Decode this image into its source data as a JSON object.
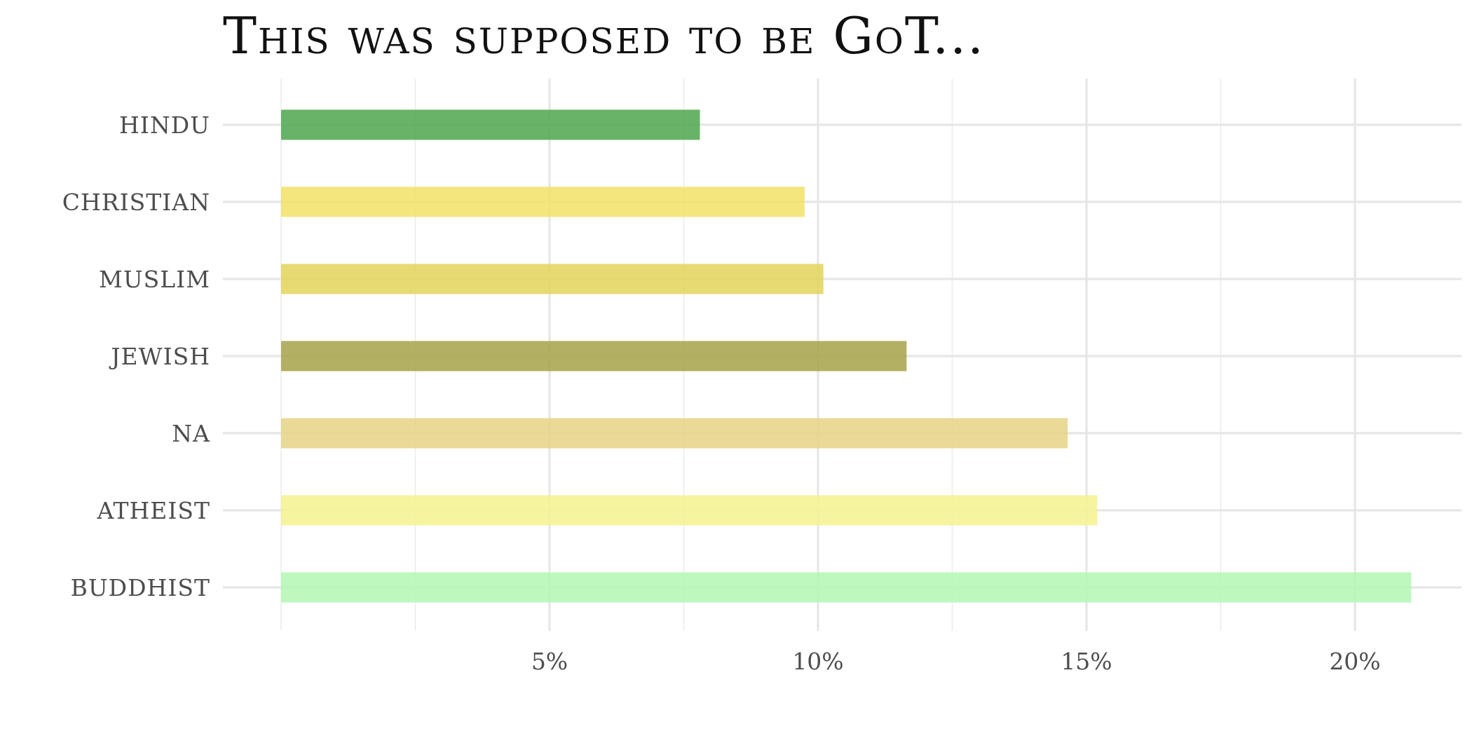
{
  "chart_data": {
    "type": "bar",
    "orientation": "horizontal",
    "title": "This was supposed to be GoT...",
    "xlabel": "",
    "ylabel": "",
    "categories": [
      "HINDU",
      "CHRISTIAN",
      "MUSLIM",
      "JEWISH",
      "NA",
      "ATHEIST",
      "BUDDHIST"
    ],
    "values": [
      7.8,
      9.75,
      10.1,
      11.65,
      14.65,
      15.2,
      21.05
    ],
    "value_unit": "%",
    "colors": [
      "#4ca64c",
      "#f2e066",
      "#e3d35a",
      "#a6a248",
      "#e6d386",
      "#f4f28e",
      "#b3f7b3"
    ],
    "xlim": [
      0,
      22
    ],
    "x_ticks": [
      {
        "value": 5,
        "label": "5%"
      },
      {
        "value": 10,
        "label": "10%"
      },
      {
        "value": 15,
        "label": "15%"
      },
      {
        "value": 20,
        "label": "20%"
      }
    ],
    "x_minor_ticks": [
      0,
      2.5,
      7.5,
      12.5,
      17.5
    ],
    "grid": true,
    "legend": "none"
  }
}
